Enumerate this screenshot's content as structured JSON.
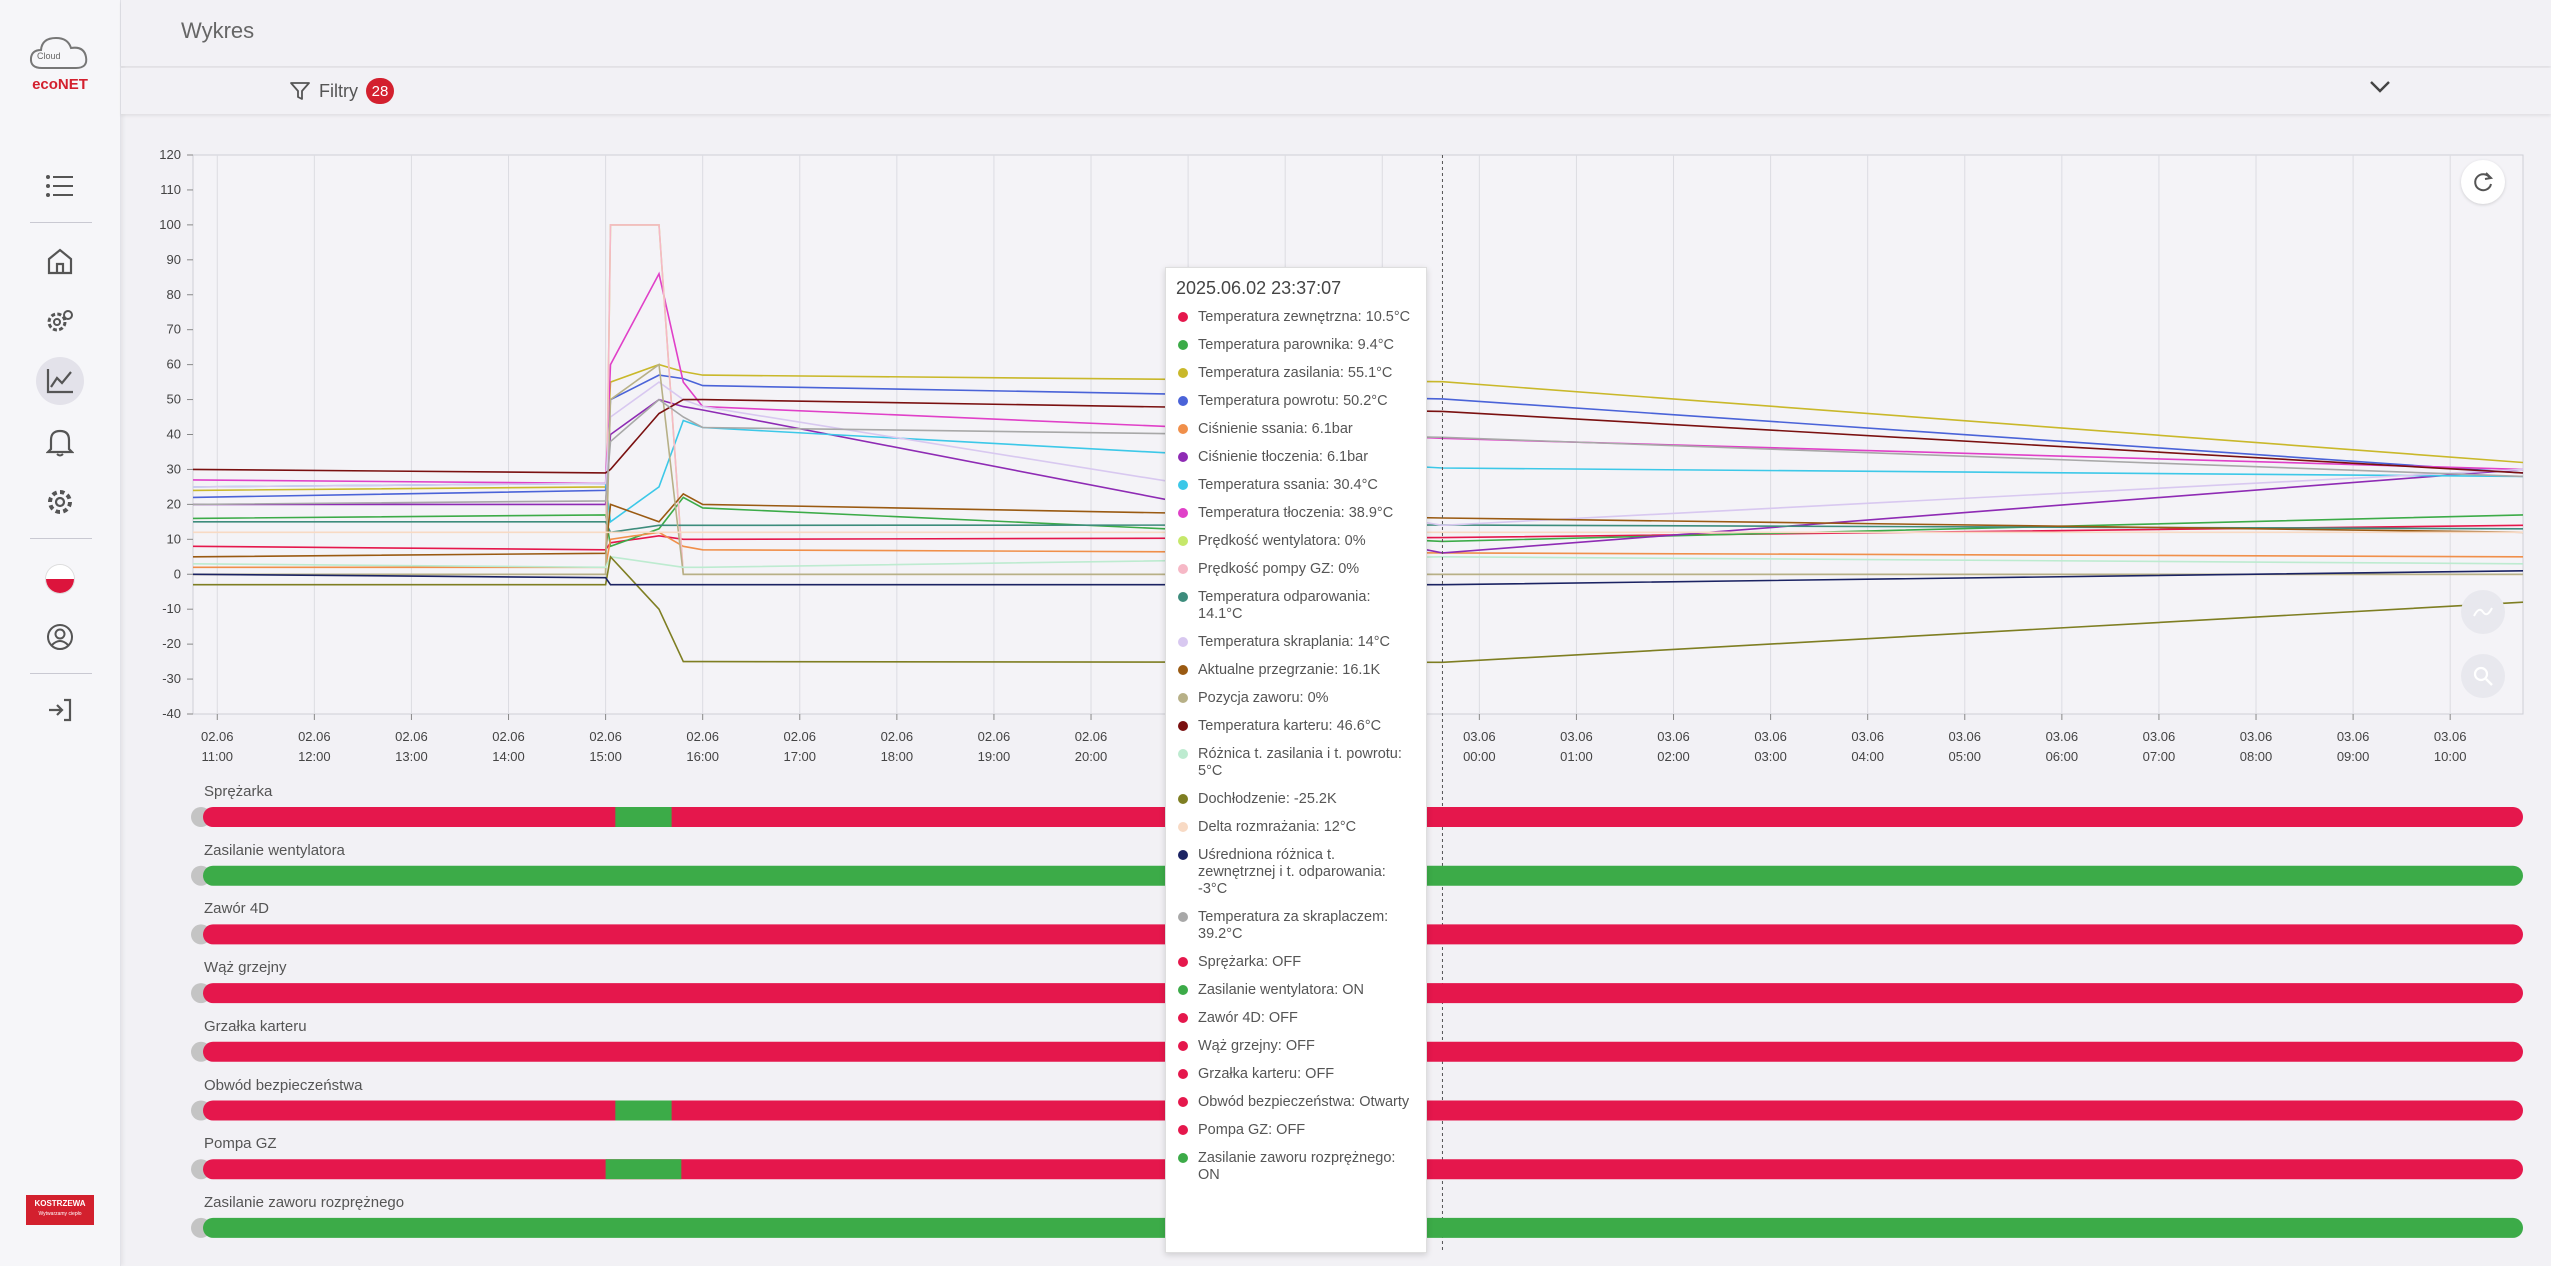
{
  "app": {
    "brand_icon_text": "Cloud",
    "brand": "ecoNET",
    "vendor": "KOSTRZEWA",
    "vendor_sub": "Wytwarzamy ciepło"
  },
  "header": {
    "title": "Wykres"
  },
  "filters": {
    "label": "Filtry",
    "count": "28"
  },
  "sidebar": {
    "icons": [
      "list-icon",
      "home-icon",
      "settings-gears-icon",
      "chart-icon",
      "bell-icon",
      "gear-icon",
      "flag-pl-icon",
      "user-support-icon",
      "logout-icon"
    ],
    "active": "chart-icon"
  },
  "colors": {
    "on": "#3cab48",
    "off": "#e5174c",
    "accent": "#d3202e"
  },
  "chart_data": {
    "type": "line",
    "ylim": [
      -40,
      120
    ],
    "yticks": [
      "120",
      "110",
      "100",
      "90",
      "80",
      "70",
      "60",
      "50",
      "40",
      "30",
      "20",
      "10",
      "0",
      "-10",
      "-20",
      "-30",
      "-40"
    ],
    "x_ticks": [
      {
        "d": "02.06",
        "t": "11:00"
      },
      {
        "d": "02.06",
        "t": "12:00"
      },
      {
        "d": "02.06",
        "t": "13:00"
      },
      {
        "d": "02.06",
        "t": "14:00"
      },
      {
        "d": "02.06",
        "t": "15:00"
      },
      {
        "d": "02.06",
        "t": "16:00"
      },
      {
        "d": "02.06",
        "t": "17:00"
      },
      {
        "d": "02.06",
        "t": "18:00"
      },
      {
        "d": "02.06",
        "t": "19:00"
      },
      {
        "d": "02.06",
        "t": "20:00"
      },
      {
        "d": "02.06",
        "t": "21:00"
      },
      {
        "d": "02.06",
        "t": "22:00"
      },
      {
        "d": "02.06",
        "t": "23:00"
      },
      {
        "d": "03.06",
        "t": "00:00"
      },
      {
        "d": "03.06",
        "t": "01:00"
      },
      {
        "d": "03.06",
        "t": "02:00"
      },
      {
        "d": "03.06",
        "t": "03:00"
      },
      {
        "d": "03.06",
        "t": "04:00"
      },
      {
        "d": "03.06",
        "t": "05:00"
      },
      {
        "d": "03.06",
        "t": "06:00"
      },
      {
        "d": "03.06",
        "t": "07:00"
      },
      {
        "d": "03.06",
        "t": "08:00"
      },
      {
        "d": "03.06",
        "t": "09:00"
      },
      {
        "d": "03.06",
        "t": "10:00"
      }
    ],
    "x_hours": [
      10.75,
      15.0,
      15.05,
      15.55,
      15.8,
      16.0,
      23.62,
      34.75
    ],
    "series": [
      {
        "name": "Temperatura zewnętrzna",
        "color": "#e5174c",
        "values": [
          8,
          7,
          9,
          11,
          10,
          10,
          10.5,
          14
        ]
      },
      {
        "name": "Temperatura parownika",
        "color": "#3cab48",
        "values": [
          16,
          17,
          8,
          13,
          22,
          19,
          9.4,
          17
        ]
      },
      {
        "name": "Temperatura zasilania",
        "color": "#c9b82a",
        "values": [
          24,
          25,
          55,
          60,
          58,
          57,
          55.1,
          32
        ]
      },
      {
        "name": "Temperatura powrotu",
        "color": "#4a63d8",
        "values": [
          22,
          24,
          50,
          57,
          56,
          54,
          50.2,
          29
        ]
      },
      {
        "name": "Ciśnienie ssania",
        "color": "#f08f4a",
        "values": [
          2,
          2,
          10,
          12,
          8,
          7,
          6.1,
          5
        ]
      },
      {
        "name": "Ciśnienie tłoczenia",
        "color": "#8e2bb4",
        "values": [
          20,
          20,
          40,
          50,
          48,
          47,
          6.1,
          30
        ]
      },
      {
        "name": "Temperatura ssania",
        "color": "#3cc8e8",
        "values": [
          25,
          26,
          15,
          25,
          44,
          42,
          30.4,
          28
        ]
      },
      {
        "name": "Temperatura tłoczenia",
        "color": "#e040c8",
        "values": [
          27,
          26,
          60,
          86,
          55,
          48,
          38.9,
          30
        ]
      },
      {
        "name": "Prędkość wentylatora",
        "color": "#c6e86a",
        "values": [
          0,
          0,
          100,
          100,
          0,
          0,
          0,
          0
        ]
      },
      {
        "name": "Prędkość pompy GZ",
        "color": "#f6b8c6",
        "values": [
          0,
          0,
          100,
          100,
          0,
          0,
          0,
          0
        ]
      },
      {
        "name": "Temperatura odparowania",
        "color": "#3d8c7c",
        "values": [
          15,
          15,
          12,
          14,
          14,
          14,
          14.1,
          13
        ]
      },
      {
        "name": "Temperatura skraplania",
        "color": "#d8c8f0",
        "values": [
          25,
          26,
          45,
          55,
          50,
          48,
          14,
          30
        ]
      },
      {
        "name": "Aktualne przegrzanie",
        "color": "#9a5a12",
        "values": [
          5,
          6,
          20,
          15,
          23,
          20,
          16.1,
          12
        ]
      },
      {
        "name": "Pozycja zaworu",
        "color": "#b7b087",
        "values": [
          0,
          0,
          50,
          60,
          0,
          0,
          0,
          0
        ]
      },
      {
        "name": "Temperatura karteru",
        "color": "#7a1010",
        "values": [
          30,
          29,
          30,
          46,
          50,
          50,
          46.6,
          29
        ]
      },
      {
        "name": "Różnica t. zasilania i t. powrotu",
        "color": "#bdebd0",
        "values": [
          3,
          2,
          5,
          3,
          2,
          2,
          5,
          3
        ]
      },
      {
        "name": "Dochłodzenie",
        "color": "#7e7e22",
        "values": [
          -3,
          -3,
          5,
          -10,
          -25,
          -25,
          -25.2,
          -8
        ]
      },
      {
        "name": "Delta rozmrażania",
        "color": "#f8dac4",
        "values": [
          12,
          12,
          12,
          12,
          12,
          12,
          12,
          12
        ]
      },
      {
        "name": "Uśredniona różnica t. zewnętrznej i t. odparowania",
        "color": "#1b2363",
        "values": [
          0,
          -1,
          -3,
          -3,
          -3,
          -3,
          -3,
          1
        ]
      },
      {
        "name": "Temperatura za skraplaczem",
        "color": "#a8a8a8",
        "values": [
          20,
          21,
          38,
          50,
          45,
          42,
          39.2,
          28
        ]
      }
    ]
  },
  "status_rows": [
    {
      "label": "Sprężarka",
      "on_from_h": 15.1,
      "on_to_h": 15.68,
      "base": "off"
    },
    {
      "label": "Zasilanie wentylatora",
      "on_from_h": null,
      "on_to_h": null,
      "base": "on"
    },
    {
      "label": "Zawór 4D",
      "on_from_h": null,
      "on_to_h": null,
      "base": "off"
    },
    {
      "label": "Wąż grzejny",
      "on_from_h": null,
      "on_to_h": null,
      "base": "off"
    },
    {
      "label": "Grzałka karteru",
      "on_from_h": null,
      "on_to_h": null,
      "base": "off"
    },
    {
      "label": "Obwód bezpieczeństwa",
      "on_from_h": 15.1,
      "on_to_h": 15.68,
      "base": "off"
    },
    {
      "label": "Pompa GZ",
      "on_from_h": 15.0,
      "on_to_h": 15.78,
      "base": "off"
    },
    {
      "label": "Zasilanie zaworu rozprężnego",
      "on_from_h": null,
      "on_to_h": null,
      "base": "on"
    }
  ],
  "tooltip": {
    "time": "2025.06.02 23:37:07",
    "items": [
      {
        "text": "Temperatura zewnętrzna: 10.5°C",
        "color": "#e5174c"
      },
      {
        "text": "Temperatura parownika: 9.4°C",
        "color": "#3cab48"
      },
      {
        "text": "Temperatura zasilania: 55.1°C",
        "color": "#c9b82a"
      },
      {
        "text": "Temperatura powrotu: 50.2°C",
        "color": "#4a63d8"
      },
      {
        "text": "Ciśnienie ssania: 6.1bar",
        "color": "#f08f4a"
      },
      {
        "text": "Ciśnienie tłoczenia: 6.1bar",
        "color": "#8e2bb4"
      },
      {
        "text": "Temperatura ssania: 30.4°C",
        "color": "#3cc8e8"
      },
      {
        "text": "Temperatura tłoczenia: 38.9°C",
        "color": "#e040c8"
      },
      {
        "text": "Prędkość wentylatora: 0%",
        "color": "#c6e86a"
      },
      {
        "text": "Prędkość pompy GZ: 0%",
        "color": "#f6b8c6"
      },
      {
        "text": "Temperatura odparowania: 14.1°C",
        "color": "#3d8c7c"
      },
      {
        "text": "Temperatura skraplania: 14°C",
        "color": "#d8c8f0"
      },
      {
        "text": "Aktualne przegrzanie: 16.1K",
        "color": "#9a5a12"
      },
      {
        "text": "Pozycja zaworu: 0%",
        "color": "#b7b087"
      },
      {
        "text": "Temperatura karteru: 46.6°C",
        "color": "#7a1010"
      },
      {
        "text": "Różnica t. zasilania i t. powrotu: 5°C",
        "color": "#bdebd0"
      },
      {
        "text": "Dochłodzenie: -25.2K",
        "color": "#7e7e22"
      },
      {
        "text": "Delta rozmrażania: 12°C",
        "color": "#f8dac4"
      },
      {
        "text": "Uśredniona różnica t. zewnętrznej i t. odparowania: -3°C",
        "color": "#1b2363"
      },
      {
        "text": "Temperatura za skraplaczem: 39.2°C",
        "color": "#a8a8a8"
      },
      {
        "text": "Sprężarka: OFF",
        "color": "#e5174c"
      },
      {
        "text": "Zasilanie wentylatora: ON",
        "color": "#3cab48"
      },
      {
        "text": "Zawór 4D: OFF",
        "color": "#e5174c"
      },
      {
        "text": "Wąż grzejny: OFF",
        "color": "#e5174c"
      },
      {
        "text": "Grzałka karteru: OFF",
        "color": "#e5174c"
      },
      {
        "text": "Obwód bezpieczeństwa: Otwarty",
        "color": "#e5174c"
      },
      {
        "text": "Pompa GZ: OFF",
        "color": "#e5174c"
      },
      {
        "text": "Zasilanie zaworu rozprężnego: ON",
        "color": "#3cab48"
      }
    ]
  }
}
